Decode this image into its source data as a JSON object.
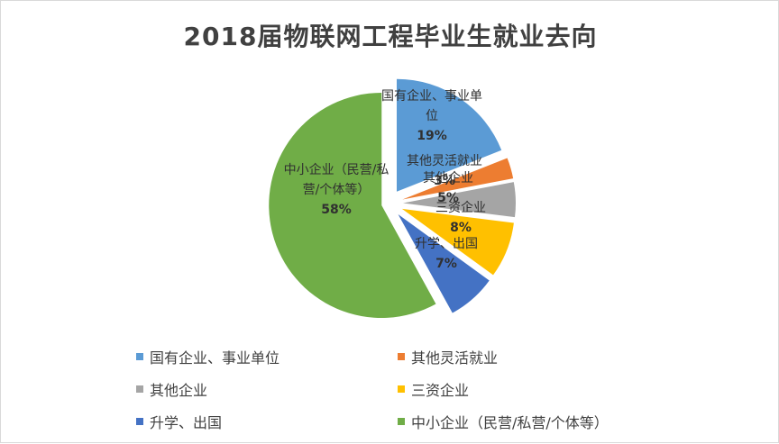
{
  "chart_data": {
    "type": "pie",
    "title": "2018届物联网工程毕业生就业去向",
    "slices": [
      {
        "name": "国有企业、事业单位",
        "label_lines": [
          "国有企业、事业单",
          "位"
        ],
        "value": 19,
        "percent_label": "19%",
        "color": "#5B9BD5"
      },
      {
        "name": "其他灵活就业",
        "label_lines": [
          "其他灵活就业"
        ],
        "value": 3,
        "percent_label": "3%",
        "color": "#ED7D31"
      },
      {
        "name": "其他企业",
        "label_lines": [
          "其他企业"
        ],
        "value": 5,
        "percent_label": "5%",
        "color": "#A5A5A5"
      },
      {
        "name": "三资企业",
        "label_lines": [
          "三资企业"
        ],
        "value": 8,
        "percent_label": "8%",
        "color": "#FFC000"
      },
      {
        "name": "升学、出国",
        "label_lines": [
          "升学、出国"
        ],
        "value": 7,
        "percent_label": "7%",
        "color": "#4472C4"
      },
      {
        "name": "中小企业（民营/私营/个体等）",
        "label_lines": [
          "中小企业（民营/私",
          "营/个体等）"
        ],
        "value": 58,
        "percent_label": "58%",
        "color": "#70AD47"
      }
    ],
    "legend": "bottom",
    "exploded": true
  }
}
